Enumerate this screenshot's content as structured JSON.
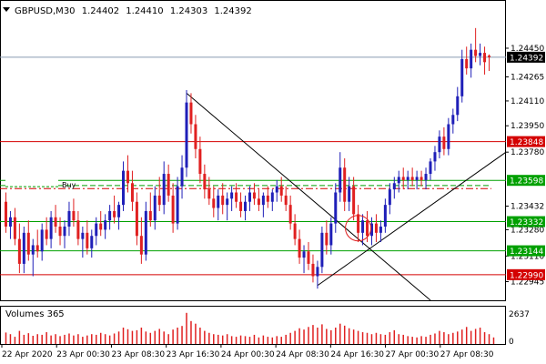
{
  "header": {
    "symbol": "GBPUSD,M30",
    "open": "1.24402",
    "high": "1.24410",
    "low": "1.24303",
    "close": "1.24392"
  },
  "colors": {
    "background": "#ffffff",
    "frame": "#000000",
    "bull_candle": "#1f1fb8",
    "bear_candle": "#e02020",
    "resistance_line": "#d40000",
    "support_line": "#00a000",
    "current_price_line": "#8a9bb0",
    "volume": "#e02020"
  },
  "labels": {
    "buy": "Buy"
  },
  "chart_data": {
    "type": "candlestick",
    "price_scale": {
      "min": 1.2286,
      "max": 1.2462,
      "tick_labels": [
        "1.24450",
        "1.24265",
        "1.24110",
        "1.23950",
        "1.23780",
        "1.23432",
        "1.23280",
        "1.23110",
        "1.22945"
      ]
    },
    "current_price": "1.24392",
    "horizontal_levels": [
      {
        "price": 1.23848,
        "label": "1.23848",
        "color": "red"
      },
      {
        "price": 1.23598,
        "label": "1.23598",
        "color": "green"
      },
      {
        "price": 1.23332,
        "label": "1.23332",
        "color": "green"
      },
      {
        "price": 1.23144,
        "label": "1.23144",
        "color": "green"
      },
      {
        "price": 1.2299,
        "label": "1.22990",
        "color": "red"
      }
    ],
    "x_tick_labels": [
      "22 Apr 2020",
      "23 Apr 00:30",
      "23 Apr 08:30",
      "23 Apr 16:30",
      "24 Apr 00:30",
      "24 Apr 08:30",
      "24 Apr 16:30",
      "27 Apr 00:30",
      "27 Apr 08:30"
    ],
    "volume_panel": {
      "title": "Volumes 365",
      "max_label": "2637",
      "zero_label": "0"
    },
    "candles": [
      [
        1.2346,
        1.2352,
        1.2326,
        1.233
      ],
      [
        1.233,
        1.234,
        1.2322,
        1.2336
      ],
      [
        1.2336,
        1.2342,
        1.2318,
        1.2322
      ],
      [
        1.2322,
        1.2332,
        1.23,
        1.2306
      ],
      [
        1.2306,
        1.233,
        1.23,
        1.2326
      ],
      [
        1.2326,
        1.2334,
        1.2308,
        1.2312
      ],
      [
        1.2312,
        1.2322,
        1.2298,
        1.2318
      ],
      [
        1.2318,
        1.2328,
        1.231,
        1.2314
      ],
      [
        1.2314,
        1.2332,
        1.2308,
        1.2328
      ],
      [
        1.2328,
        1.2336,
        1.2318,
        1.2322
      ],
      [
        1.2322,
        1.234,
        1.2316,
        1.2336
      ],
      [
        1.2336,
        1.2344,
        1.2326,
        1.233
      ],
      [
        1.233,
        1.2336,
        1.2318,
        1.2324
      ],
      [
        1.2324,
        1.2334,
        1.2316,
        1.233
      ],
      [
        1.233,
        1.2346,
        1.2324,
        1.234
      ],
      [
        1.234,
        1.2348,
        1.233,
        1.2334
      ],
      [
        1.2334,
        1.234,
        1.2318,
        1.2322
      ],
      [
        1.2322,
        1.233,
        1.231,
        1.2326
      ],
      [
        1.2326,
        1.2334,
        1.2312,
        1.2316
      ],
      [
        1.2316,
        1.2328,
        1.231,
        1.2324
      ],
      [
        1.2324,
        1.2336,
        1.2318,
        1.2332
      ],
      [
        1.2332,
        1.234,
        1.2324,
        1.2328
      ],
      [
        1.2328,
        1.2338,
        1.2322,
        1.2334
      ],
      [
        1.2334,
        1.2344,
        1.2328,
        1.234
      ],
      [
        1.234,
        1.235,
        1.2332,
        1.2336
      ],
      [
        1.2336,
        1.2346,
        1.2328,
        1.2344
      ],
      [
        1.2344,
        1.2372,
        1.234,
        1.2366
      ],
      [
        1.2366,
        1.2376,
        1.2352,
        1.2358
      ],
      [
        1.2358,
        1.2366,
        1.234,
        1.2346
      ],
      [
        1.2346,
        1.2352,
        1.2318,
        1.2324
      ],
      [
        1.2324,
        1.2336,
        1.2306,
        1.2312
      ],
      [
        1.2312,
        1.2346,
        1.2308,
        1.234
      ],
      [
        1.234,
        1.2352,
        1.233,
        1.2334
      ],
      [
        1.2334,
        1.2356,
        1.2328,
        1.235
      ],
      [
        1.235,
        1.2362,
        1.234,
        1.2344
      ],
      [
        1.2344,
        1.2372,
        1.2338,
        1.2364
      ],
      [
        1.2364,
        1.237,
        1.2346,
        1.235
      ],
      [
        1.235,
        1.2358,
        1.2326,
        1.2332
      ],
      [
        1.2332,
        1.2362,
        1.2328,
        1.2356
      ],
      [
        1.2356,
        1.2376,
        1.2348,
        1.2368
      ],
      [
        1.2368,
        1.2418,
        1.2362,
        1.241
      ],
      [
        1.241,
        1.2416,
        1.239,
        1.2396
      ],
      [
        1.2396,
        1.2402,
        1.2374,
        1.238
      ],
      [
        1.238,
        1.2388,
        1.2358,
        1.2364
      ],
      [
        1.2364,
        1.237,
        1.2348,
        1.2354
      ],
      [
        1.2354,
        1.2362,
        1.2344,
        1.2348
      ],
      [
        1.2348,
        1.2356,
        1.2336,
        1.2342
      ],
      [
        1.2342,
        1.2354,
        1.2334,
        1.235
      ],
      [
        1.235,
        1.2358,
        1.2338,
        1.2344
      ],
      [
        1.2344,
        1.2352,
        1.2334,
        1.2348
      ],
      [
        1.2348,
        1.2356,
        1.234,
        1.2352
      ],
      [
        1.2352,
        1.2358,
        1.2342,
        1.2346
      ],
      [
        1.2346,
        1.2352,
        1.2336,
        1.234
      ],
      [
        1.234,
        1.235,
        1.2334,
        1.2346
      ],
      [
        1.2346,
        1.2356,
        1.234,
        1.2352
      ],
      [
        1.2352,
        1.2358,
        1.2344,
        1.2348
      ],
      [
        1.2348,
        1.2354,
        1.234,
        1.2344
      ],
      [
        1.2344,
        1.2352,
        1.2336,
        1.235
      ],
      [
        1.235,
        1.2356,
        1.2342,
        1.2346
      ],
      [
        1.2346,
        1.2354,
        1.234,
        1.2352
      ],
      [
        1.2352,
        1.236,
        1.2346,
        1.2356
      ],
      [
        1.2356,
        1.2362,
        1.2346,
        1.235
      ],
      [
        1.235,
        1.2356,
        1.234,
        1.2344
      ],
      [
        1.2344,
        1.235,
        1.2328,
        1.2332
      ],
      [
        1.2332,
        1.2338,
        1.2318,
        1.2322
      ],
      [
        1.2322,
        1.2328,
        1.2306,
        1.231
      ],
      [
        1.231,
        1.2318,
        1.23,
        1.2314
      ],
      [
        1.2314,
        1.232,
        1.2302,
        1.2306
      ],
      [
        1.2306,
        1.2312,
        1.2294,
        1.2298
      ],
      [
        1.2298,
        1.2308,
        1.229,
        1.2304
      ],
      [
        1.2304,
        1.233,
        1.23,
        1.2326
      ],
      [
        1.2326,
        1.2334,
        1.2312,
        1.2318
      ],
      [
        1.2318,
        1.2336,
        1.2312,
        1.2332
      ],
      [
        1.2332,
        1.2358,
        1.2326,
        1.2352
      ],
      [
        1.2352,
        1.2378,
        1.2346,
        1.2368
      ],
      [
        1.2368,
        1.2374,
        1.234,
        1.2346
      ],
      [
        1.2346,
        1.2362,
        1.234,
        1.2356
      ],
      [
        1.2356,
        1.2362,
        1.2334,
        1.2338
      ],
      [
        1.2338,
        1.2344,
        1.232,
        1.2326
      ],
      [
        1.2326,
        1.2338,
        1.2318,
        1.2334
      ],
      [
        1.2334,
        1.234,
        1.232,
        1.2324
      ],
      [
        1.2324,
        1.2336,
        1.2318,
        1.2332
      ],
      [
        1.2332,
        1.2338,
        1.232,
        1.2326
      ],
      [
        1.2326,
        1.2334,
        1.232,
        1.233
      ],
      [
        1.233,
        1.2348,
        1.2326,
        1.2344
      ],
      [
        1.2344,
        1.2358,
        1.2338,
        1.2354
      ],
      [
        1.2354,
        1.2362,
        1.2348,
        1.2358
      ],
      [
        1.2358,
        1.2366,
        1.2352,
        1.2362
      ],
      [
        1.2362,
        1.2368,
        1.2354,
        1.236
      ],
      [
        1.236,
        1.2366,
        1.2354,
        1.2362
      ],
      [
        1.2362,
        1.2368,
        1.2356,
        1.236
      ],
      [
        1.236,
        1.2366,
        1.2354,
        1.2362
      ],
      [
        1.2362,
        1.2366,
        1.2356,
        1.236
      ],
      [
        1.236,
        1.2368,
        1.2354,
        1.2364
      ],
      [
        1.2364,
        1.2374,
        1.236,
        1.2372
      ],
      [
        1.2372,
        1.2382,
        1.2366,
        1.2378
      ],
      [
        1.2378,
        1.2392,
        1.2374,
        1.2388
      ],
      [
        1.2388,
        1.2394,
        1.2376,
        1.238
      ],
      [
        1.238,
        1.24,
        1.2376,
        1.2396
      ],
      [
        1.2396,
        1.2406,
        1.239,
        1.2402
      ],
      [
        1.2402,
        1.242,
        1.2398,
        1.2414
      ],
      [
        1.2414,
        1.2444,
        1.241,
        1.2438
      ],
      [
        1.2438,
        1.2446,
        1.2428,
        1.2432
      ],
      [
        1.2432,
        1.2448,
        1.2426,
        1.2444
      ],
      [
        1.2444,
        1.2458,
        1.2436,
        1.244
      ],
      [
        1.244,
        1.2448,
        1.2434,
        1.2442
      ],
      [
        1.2442,
        1.2446,
        1.2428,
        1.2436
      ],
      [
        1.24402,
        1.2441,
        1.24303,
        1.24392
      ]
    ],
    "volumes": [
      0.35,
      0.3,
      0.22,
      0.4,
      0.28,
      0.33,
      0.25,
      0.3,
      0.28,
      0.36,
      0.26,
      0.3,
      0.24,
      0.28,
      0.32,
      0.26,
      0.3,
      0.22,
      0.26,
      0.3,
      0.28,
      0.34,
      0.3,
      0.26,
      0.32,
      0.38,
      0.5,
      0.45,
      0.4,
      0.42,
      0.5,
      0.38,
      0.34,
      0.4,
      0.46,
      0.38,
      0.3,
      0.44,
      0.5,
      0.55,
      0.95,
      0.7,
      0.62,
      0.5,
      0.4,
      0.34,
      0.3,
      0.28,
      0.26,
      0.3,
      0.24,
      0.22,
      0.26,
      0.24,
      0.22,
      0.28,
      0.2,
      0.26,
      0.22,
      0.2,
      0.24,
      0.22,
      0.28,
      0.34,
      0.4,
      0.48,
      0.44,
      0.52,
      0.58,
      0.5,
      0.6,
      0.46,
      0.42,
      0.5,
      0.62,
      0.56,
      0.48,
      0.44,
      0.4,
      0.36,
      0.34,
      0.3,
      0.34,
      0.3,
      0.28,
      0.36,
      0.42,
      0.3,
      0.28,
      0.24,
      0.22,
      0.2,
      0.24,
      0.22,
      0.28,
      0.32,
      0.4,
      0.36,
      0.3,
      0.34,
      0.38,
      0.44,
      0.52,
      0.4,
      0.46,
      0.5,
      0.36,
      0.3,
      0.2
    ]
  }
}
